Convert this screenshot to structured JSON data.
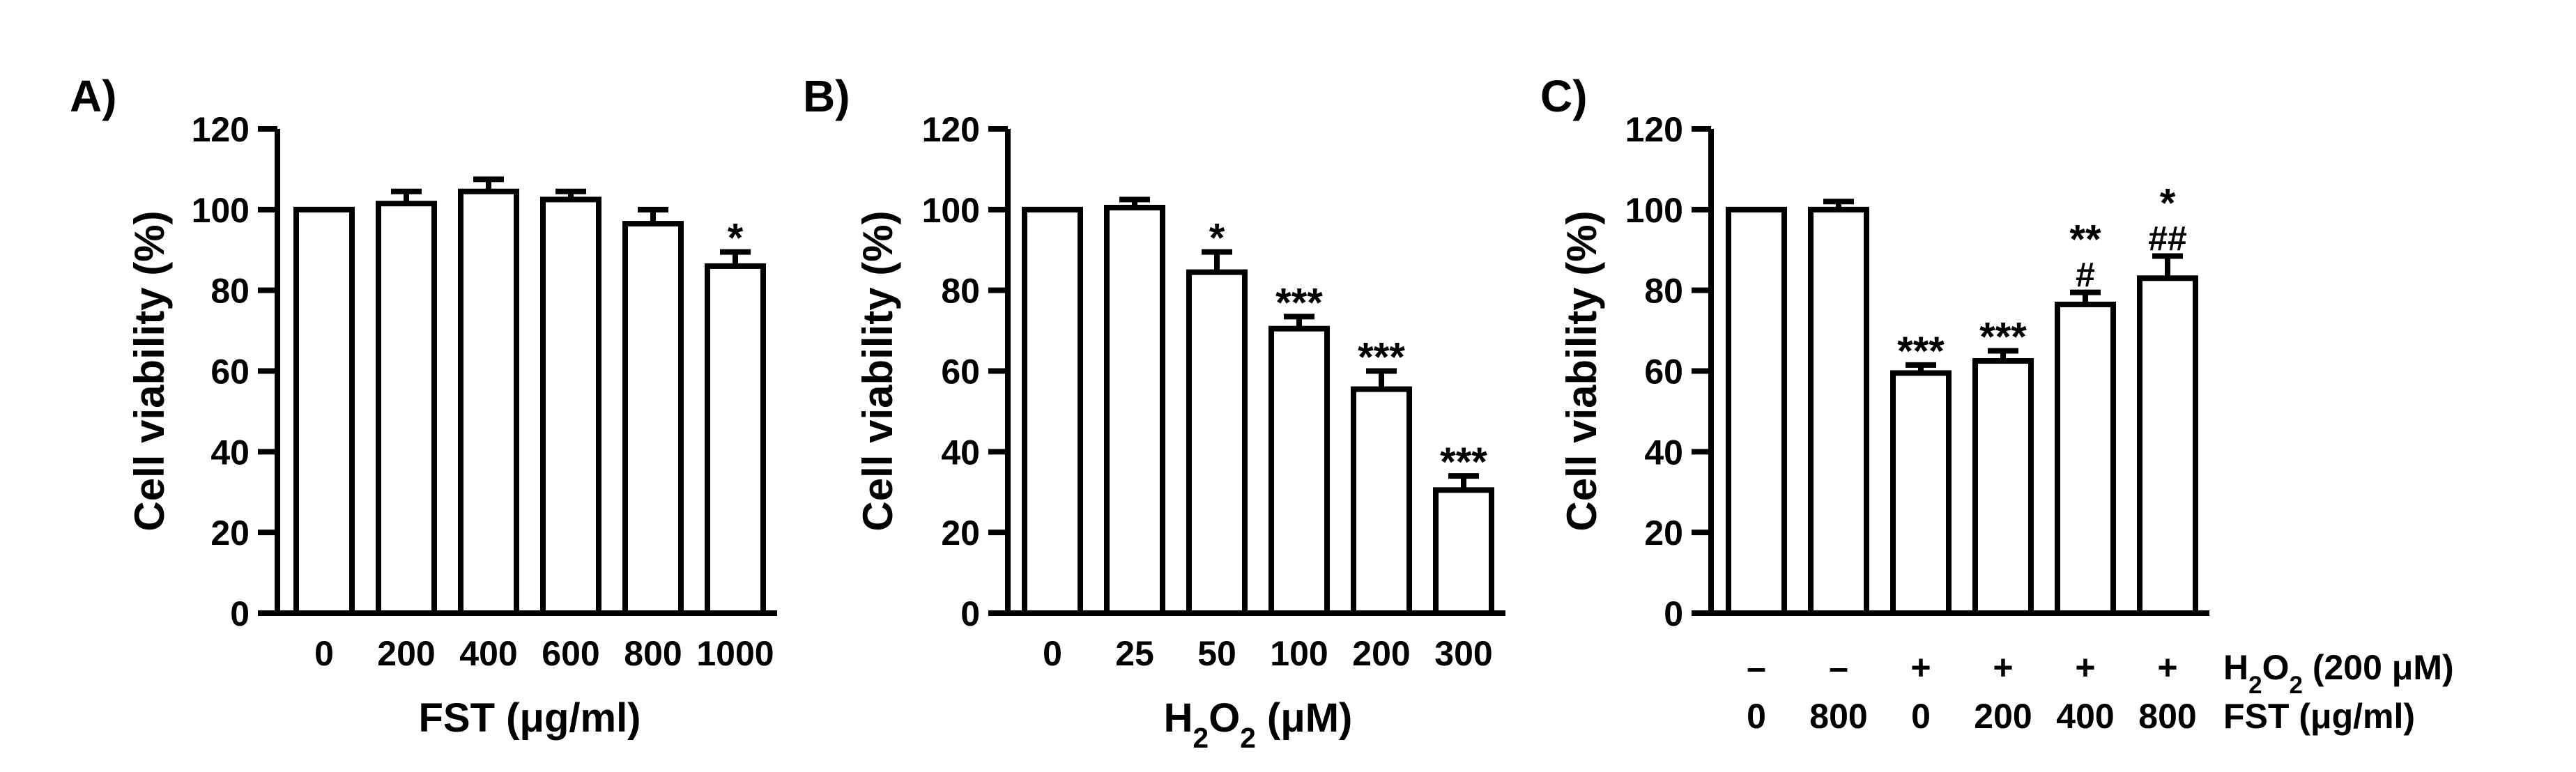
{
  "chart_data": [
    {
      "panel_label": "A)",
      "type": "bar",
      "ylabel": "Cell viability (%)",
      "xlabel_main": "FST (",
      "xlabel_sub": "",
      "xlabel_tail": "μg/ml)",
      "ylim": [
        0,
        120
      ],
      "yticks": [
        "0",
        "20",
        "40",
        "60",
        "80",
        "100",
        "120"
      ],
      "categories": [
        "0",
        "200",
        "400",
        "600",
        "800",
        "1000"
      ],
      "values": [
        100,
        101.5,
        104.5,
        102.5,
        96.5,
        86
      ],
      "errors": [
        0,
        3,
        3,
        2,
        3.5,
        3.5
      ],
      "annotations": [
        "",
        "",
        "",
        "",
        "",
        "*"
      ],
      "annotations2": [
        "",
        "",
        "",
        "",
        "",
        ""
      ],
      "colors": {
        "bar": "#ffffff",
        "edge": "#000000"
      }
    },
    {
      "panel_label": "B)",
      "type": "bar",
      "ylabel": "Cell viability (%)",
      "xlabel_main": "H",
      "xlabel_sub": "2",
      "xlabel_mid": "O",
      "xlabel_sub2": "2",
      "xlabel_tail": " (μM)",
      "ylim": [
        0,
        120
      ],
      "yticks": [
        "0",
        "20",
        "40",
        "60",
        "80",
        "100",
        "120"
      ],
      "categories": [
        "0",
        "25",
        "50",
        "100",
        "200",
        "300"
      ],
      "values": [
        100,
        100.5,
        84.5,
        70.5,
        55.5,
        30.5
      ],
      "errors": [
        0,
        2,
        5,
        3,
        4.5,
        3.5
      ],
      "annotations": [
        "",
        "",
        "*",
        "***",
        "***",
        "***"
      ],
      "annotations2": [
        "",
        "",
        "",
        "",
        "",
        ""
      ],
      "colors": {
        "bar": "#ffffff",
        "edge": "#000000"
      }
    },
    {
      "panel_label": "C)",
      "type": "bar",
      "ylabel": "Cell viability (%)",
      "ylim": [
        0,
        120
      ],
      "yticks": [
        "0",
        "20",
        "40",
        "60",
        "80",
        "100",
        "120"
      ],
      "row1_label_main": "H",
      "row1_label_sub": "2",
      "row1_label_mid": "O",
      "row1_label_sub2": "2",
      "row1_label_tail": " (200 μM)",
      "row1": [
        "–",
        "–",
        "+",
        "+",
        "+",
        "+"
      ],
      "row2_label": "FST (μg/ml)",
      "row2": [
        "0",
        "800",
        "0",
        "200",
        "400",
        "800"
      ],
      "values": [
        100,
        100,
        59.5,
        62.5,
        76.5,
        83
      ],
      "errors": [
        0,
        2,
        2,
        2.5,
        3,
        5.5
      ],
      "annotations": [
        "",
        "",
        "***",
        "***",
        "**",
        "*"
      ],
      "annotations2": [
        "",
        "",
        "",
        "",
        "#",
        "##"
      ],
      "colors": {
        "bar": "#ffffff",
        "edge": "#000000"
      }
    }
  ]
}
